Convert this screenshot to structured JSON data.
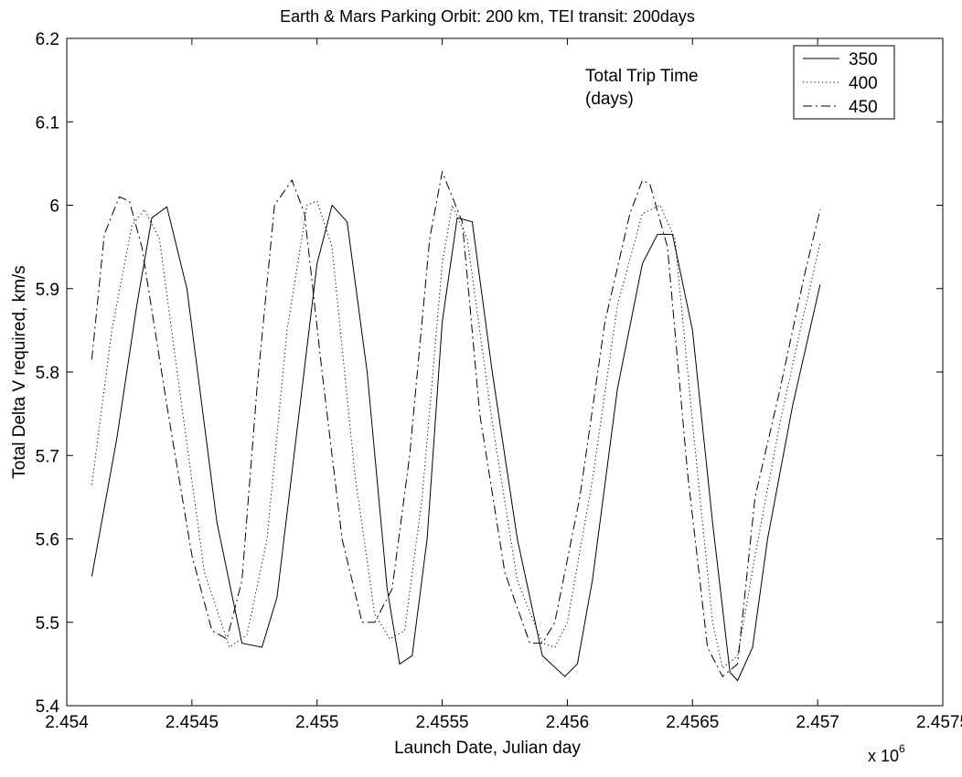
{
  "chart_data": {
    "type": "line",
    "title": "Earth & Mars Parking Orbit: 200 km, TEI transit: 200days",
    "xlabel": "Launch Date, Julian day",
    "ylabel": "Total Delta V required, km/s",
    "x_multiplier": "x 10",
    "x_multiplier_exponent": "6",
    "xlim": [
      2454000,
      2457500
    ],
    "ylim": [
      5.4,
      6.2
    ],
    "xticks": [
      2454000,
      2454500,
      2455000,
      2455500,
      2456000,
      2456500,
      2457000,
      2457500
    ],
    "xtick_labels": [
      "2.454",
      "2.4545",
      "2.455",
      "2.4555",
      "2.456",
      "2.4565",
      "2.457",
      "2.4575"
    ],
    "yticks": [
      5.4,
      5.5,
      5.6,
      5.7,
      5.8,
      5.9,
      6.0,
      6.1,
      6.2
    ],
    "ytick_labels": [
      "5.4",
      "5.5",
      "5.6",
      "5.7",
      "5.8",
      "5.9",
      "6",
      "6.1",
      "6.2"
    ],
    "grid": false,
    "legend_position": "top-right",
    "legend_title": "Total Trip Time\n(days)",
    "legend_title_lines": [
      "Total Trip Time",
      "(days)"
    ],
    "series": [
      {
        "name": "350",
        "line_style": "solid",
        "x": [
          2454100,
          2454200,
          2454280,
          2454340,
          2454400,
          2454480,
          2454600,
          2454700,
          2454780,
          2454840,
          2454920,
          2455000,
          2455060,
          2455120,
          2455200,
          2455280,
          2455330,
          2455380,
          2455440,
          2455500,
          2455560,
          2455620,
          2455700,
          2455800,
          2455900,
          2455990,
          2456040,
          2456100,
          2456200,
          2456300,
          2456360,
          2456420,
          2456500,
          2456580,
          2456650,
          2456680,
          2456740,
          2456800,
          2456900,
          2457010
        ],
        "y": [
          5.555,
          5.72,
          5.88,
          5.985,
          5.998,
          5.9,
          5.62,
          5.475,
          5.47,
          5.53,
          5.73,
          5.93,
          6.0,
          5.98,
          5.8,
          5.54,
          5.45,
          5.46,
          5.6,
          5.86,
          5.985,
          5.98,
          5.8,
          5.6,
          5.46,
          5.435,
          5.45,
          5.55,
          5.78,
          5.93,
          5.965,
          5.965,
          5.85,
          5.62,
          5.44,
          5.43,
          5.47,
          5.6,
          5.76,
          5.905
        ]
      },
      {
        "name": "400",
        "line_style": "dotted",
        "x": [
          2454100,
          2454180,
          2454260,
          2454310,
          2454370,
          2454450,
          2454550,
          2454650,
          2454720,
          2454800,
          2454880,
          2454960,
          2455000,
          2455060,
          2455150,
          2455230,
          2455290,
          2455350,
          2455420,
          2455500,
          2455540,
          2455600,
          2455700,
          2455800,
          2455900,
          2455950,
          2456000,
          2456100,
          2456200,
          2456300,
          2456370,
          2456430,
          2456500,
          2456580,
          2456620,
          2456680,
          2456750,
          2456850,
          2456930,
          2457010
        ],
        "y": [
          5.665,
          5.85,
          5.975,
          5.995,
          5.96,
          5.78,
          5.56,
          5.47,
          5.485,
          5.6,
          5.85,
          6.0,
          6.005,
          5.95,
          5.68,
          5.51,
          5.48,
          5.49,
          5.65,
          5.93,
          6.0,
          5.96,
          5.74,
          5.55,
          5.475,
          5.47,
          5.5,
          5.67,
          5.88,
          5.99,
          6.0,
          5.96,
          5.74,
          5.5,
          5.445,
          5.46,
          5.58,
          5.74,
          5.85,
          5.955
        ]
      },
      {
        "name": "450",
        "line_style": "dashdot",
        "x": [
          2454100,
          2454150,
          2454210,
          2454250,
          2454300,
          2454400,
          2454500,
          2454580,
          2454640,
          2454700,
          2454760,
          2454830,
          2454900,
          2454950,
          2455020,
          2455100,
          2455180,
          2455230,
          2455300,
          2455370,
          2455450,
          2455500,
          2455580,
          2455650,
          2455750,
          2455850,
          2455900,
          2455950,
          2456050,
          2456150,
          2456250,
          2456300,
          2456330,
          2456400,
          2456480,
          2456560,
          2456620,
          2456680,
          2456750,
          2456850,
          2456950,
          2457010
        ],
        "y": [
          5.815,
          5.965,
          6.01,
          6.005,
          5.95,
          5.76,
          5.58,
          5.49,
          5.48,
          5.55,
          5.78,
          6.0,
          6.03,
          5.99,
          5.8,
          5.6,
          5.5,
          5.5,
          5.54,
          5.7,
          5.96,
          6.04,
          5.98,
          5.75,
          5.56,
          5.475,
          5.475,
          5.5,
          5.65,
          5.86,
          5.99,
          6.03,
          6.025,
          5.95,
          5.68,
          5.47,
          5.435,
          5.45,
          5.65,
          5.78,
          5.92,
          5.995
        ]
      }
    ]
  }
}
